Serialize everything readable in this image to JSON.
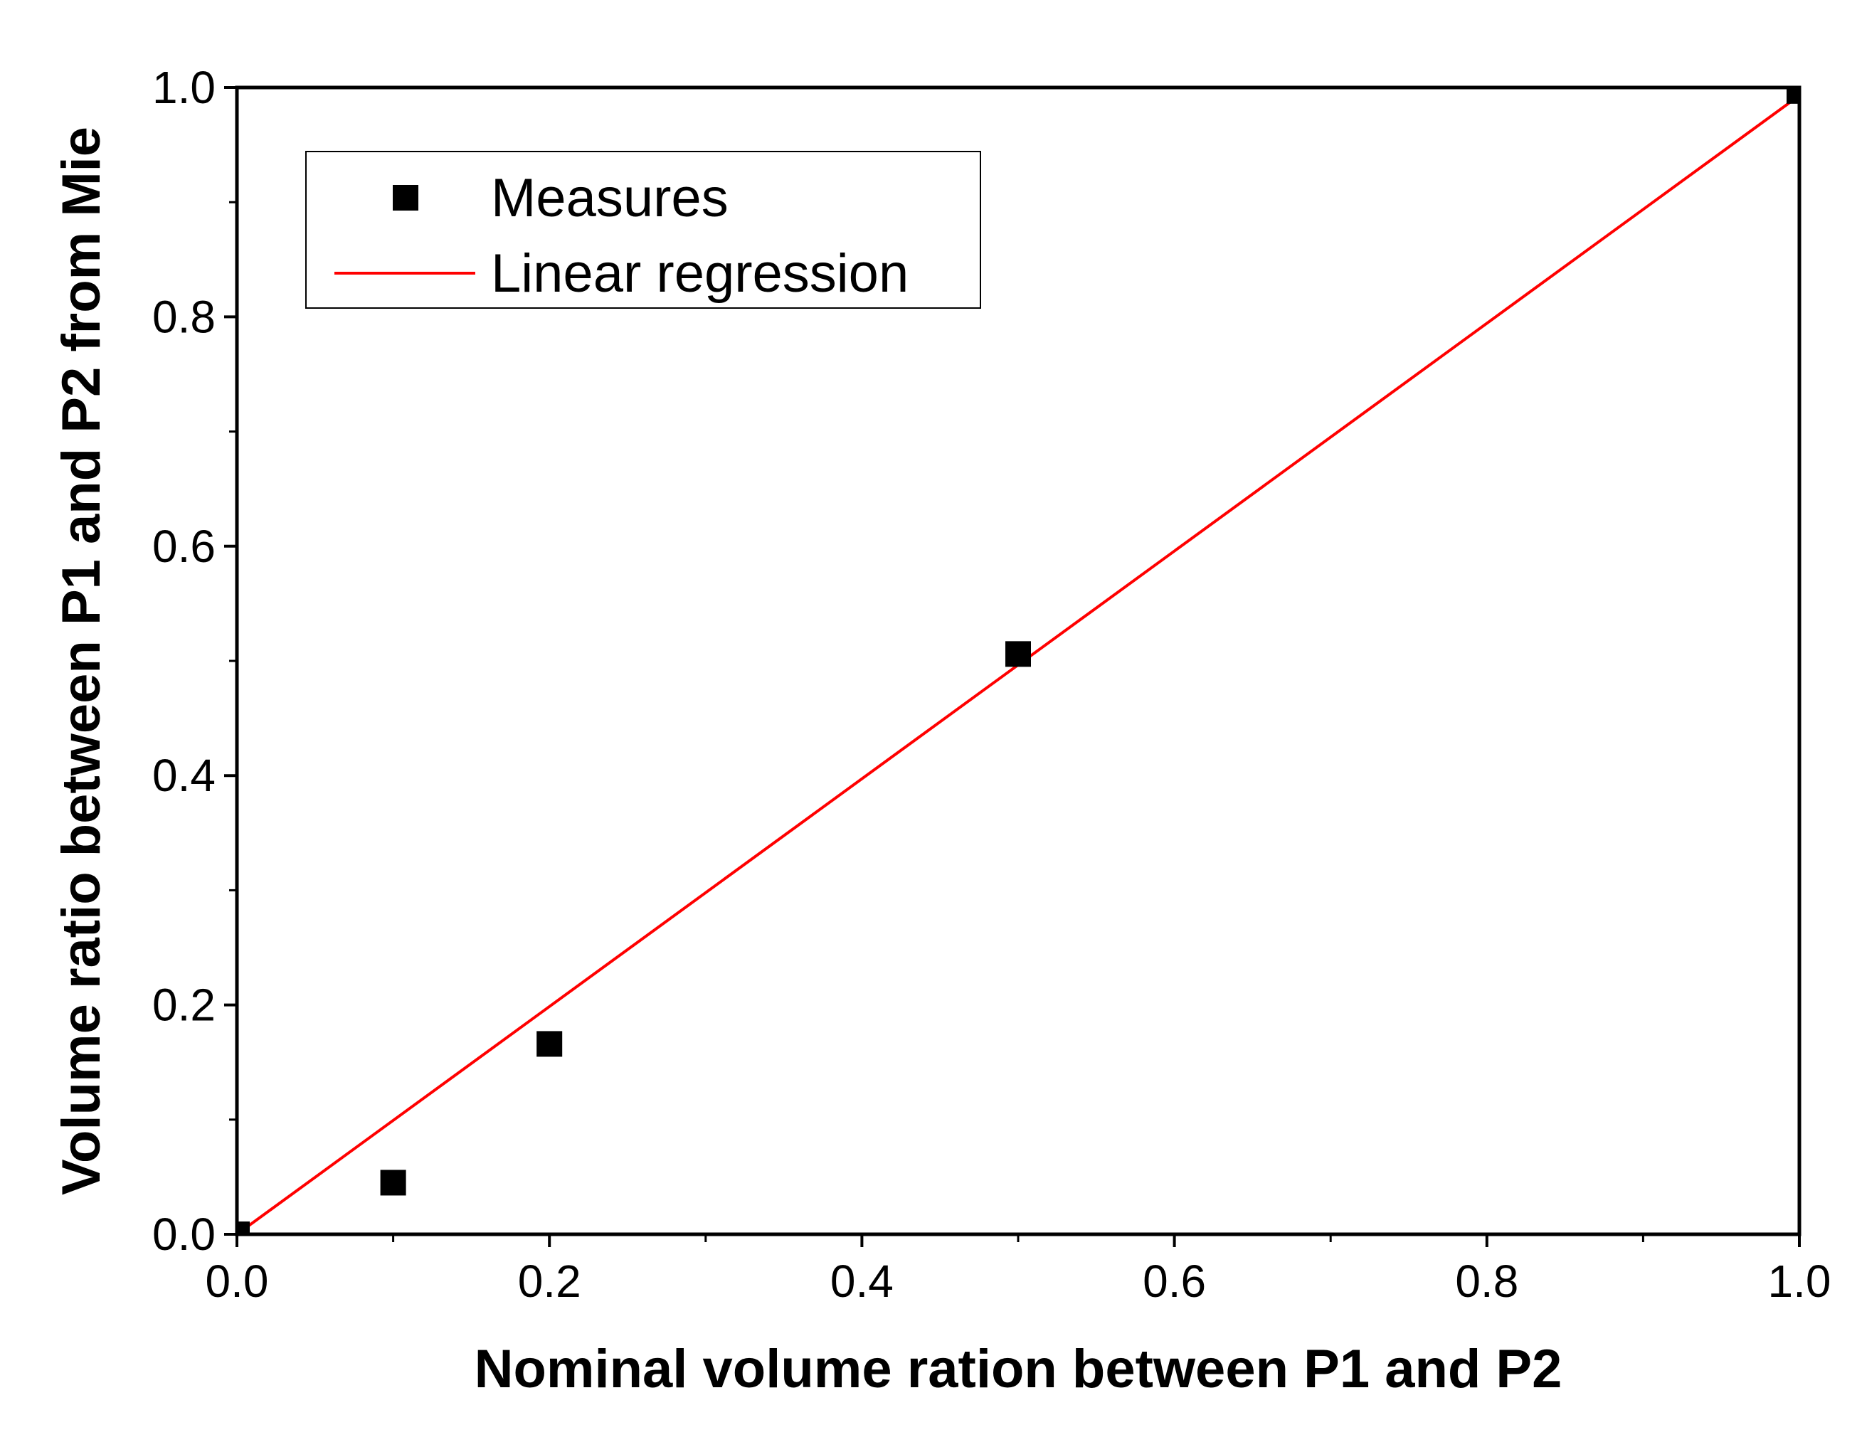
{
  "chart_data": {
    "type": "scatter",
    "title": "",
    "xlabel": "Nominal volume ration between P1 and P2",
    "ylabel": "Volume ratio between P1 and P2 from Mie",
    "xlim": [
      0.0,
      1.0
    ],
    "ylim": [
      0.0,
      1.0
    ],
    "xticks": [
      "0.0",
      "0.2",
      "0.4",
      "0.6",
      "0.8",
      "1.0"
    ],
    "yticks": [
      "0.0",
      "0.2",
      "0.4",
      "0.6",
      "0.8",
      "1.0"
    ],
    "grid": false,
    "legend_position": "top-left",
    "series": [
      {
        "name": "Measures",
        "kind": "scatter",
        "marker": "square",
        "color": "#000000",
        "x": [
          0.0,
          0.1,
          0.2,
          0.5,
          1.0
        ],
        "y": [
          0.0,
          0.045,
          0.166,
          0.506,
          0.997
        ]
      },
      {
        "name": "Linear regression",
        "kind": "line",
        "color": "#ff0000",
        "x": [
          0.0,
          1.0
        ],
        "y": [
          0.0,
          0.993
        ]
      }
    ]
  }
}
